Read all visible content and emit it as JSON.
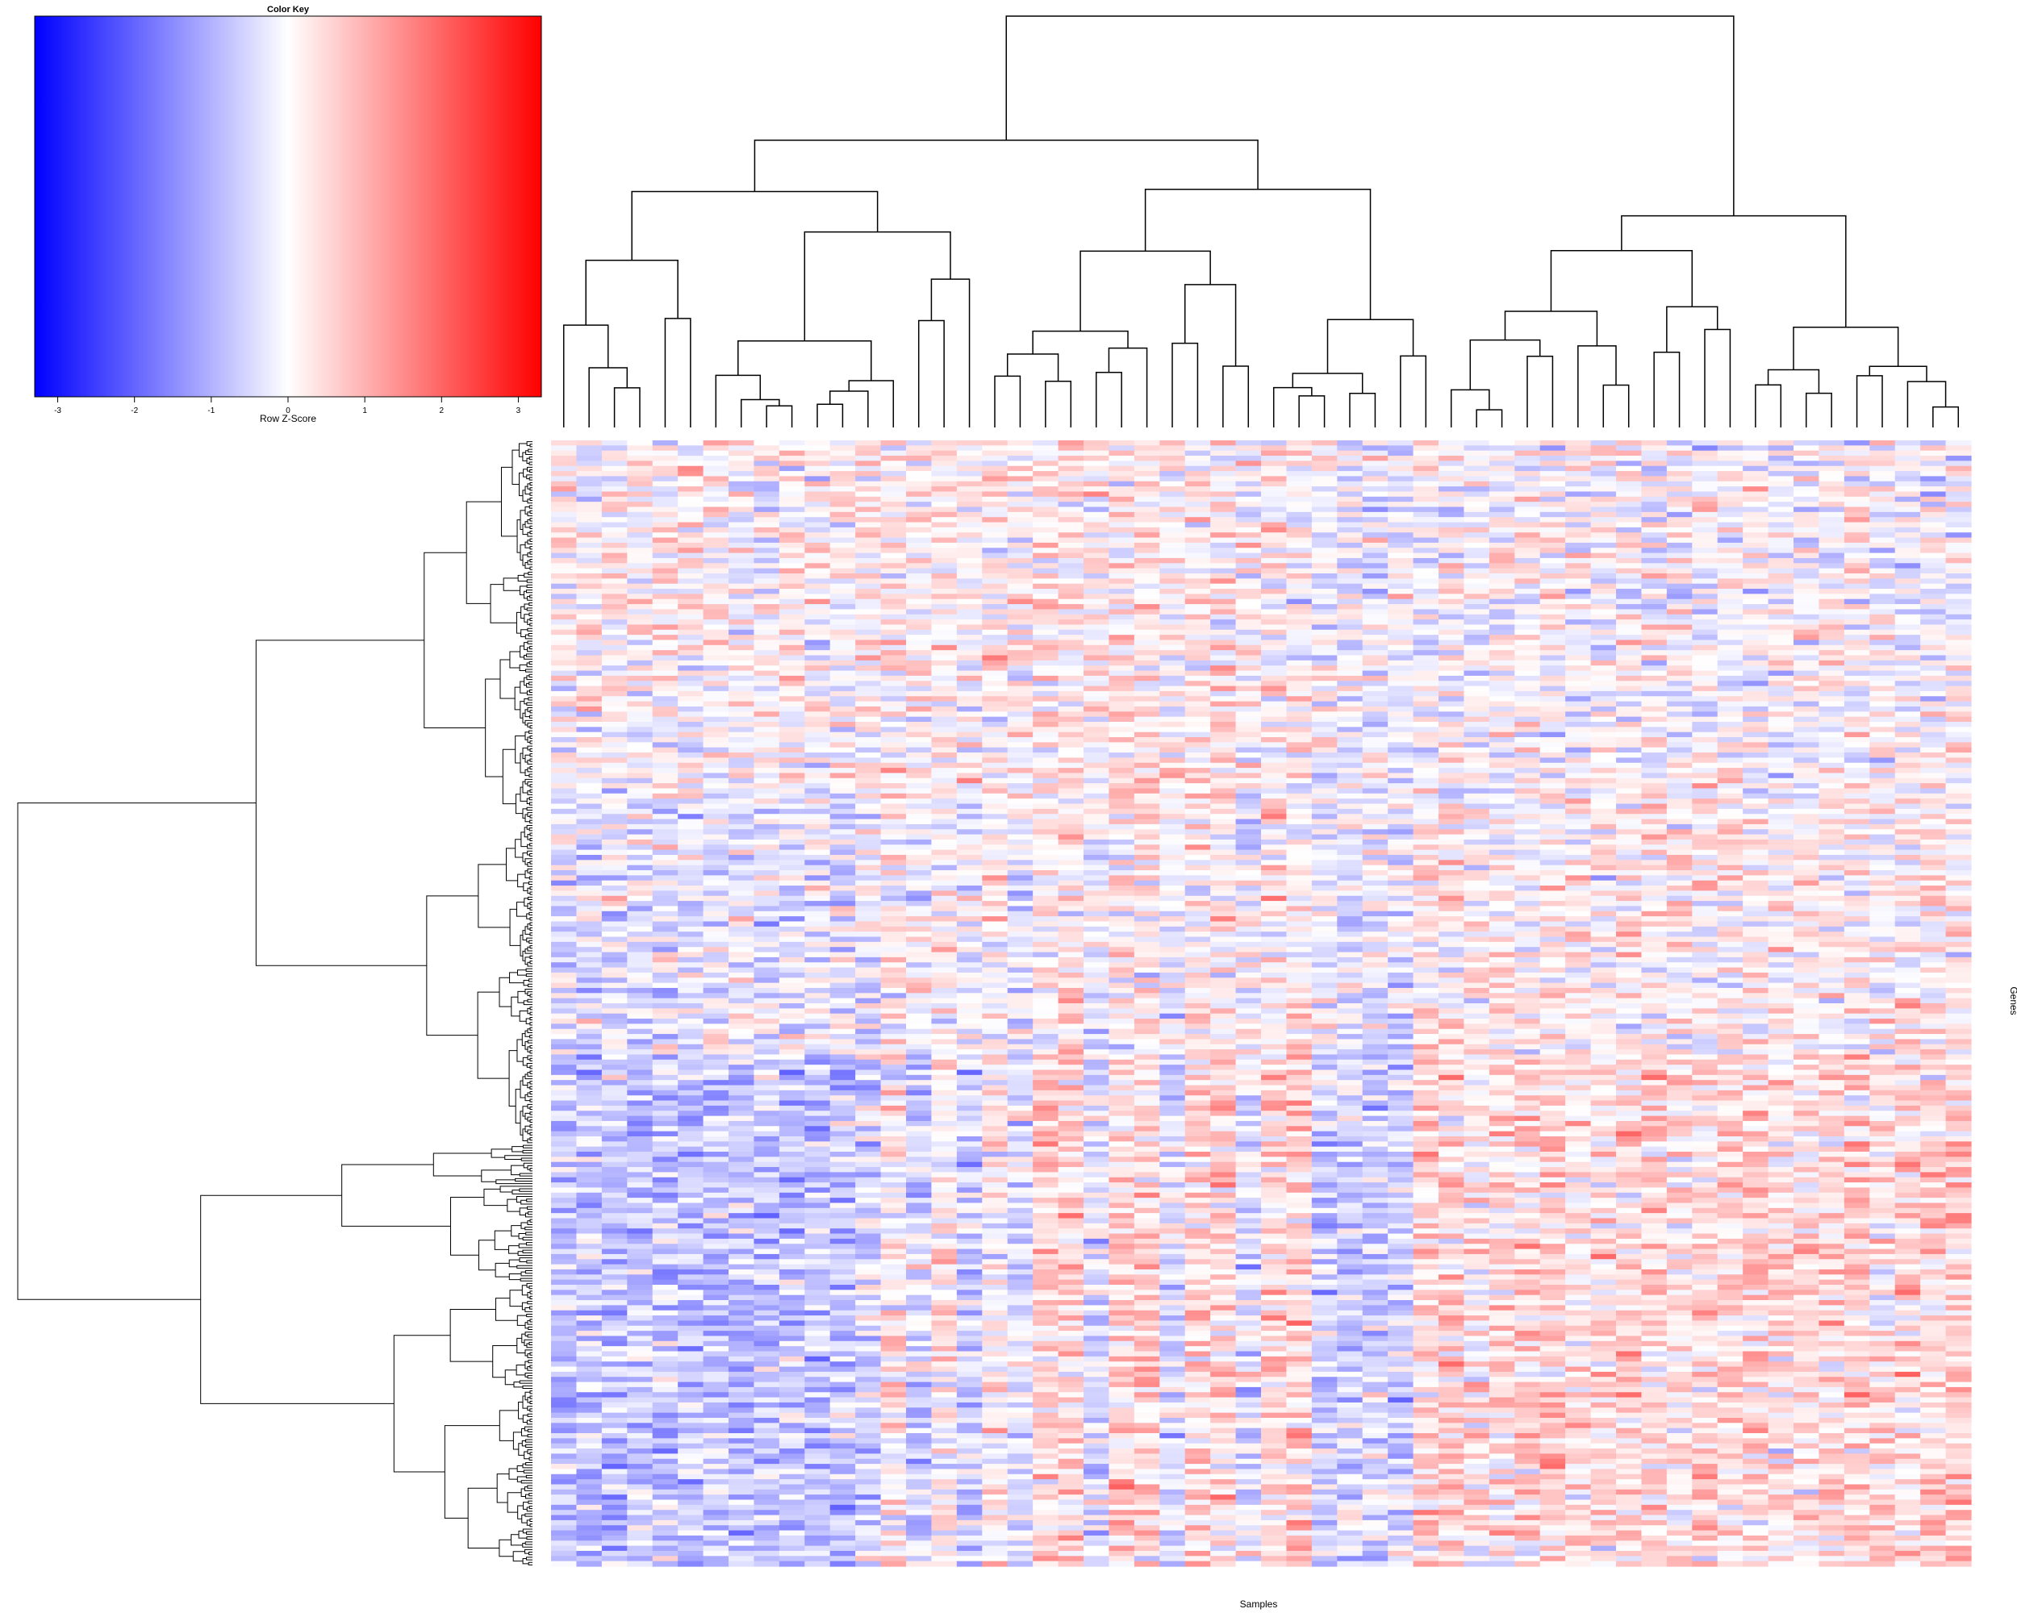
{
  "chart_data": {
    "type": "heatmap",
    "title": "",
    "xlabel": "Samples",
    "ylabel": "Genes",
    "n_columns": 56,
    "n_rows": 220,
    "row_blocks": [
      {
        "rows": "1-70",
        "pattern": "mixed, slight positive (red) bias in left half"
      },
      {
        "rows": "71-120",
        "pattern": "mixed, mostly neutral"
      },
      {
        "rows": "121-130",
        "pattern": "band: left columns low, right columns high"
      },
      {
        "rows": "131-220",
        "pattern": "left columns low (blue), right columns high (red)"
      }
    ],
    "color_key": {
      "title": "Color Key",
      "xlabel": "Row Z-Score",
      "ticks": [
        "-3",
        "-2",
        "-1",
        "0",
        "1",
        "2",
        "3"
      ],
      "range": [
        -3.3,
        3.3
      ],
      "low_color": "#0000ff",
      "mid_color": "#ffffff",
      "high_color": "#ff0000"
    },
    "column_dendrogram": "hierarchical clustering of 56 samples",
    "row_dendrogram": "hierarchical clustering of genes"
  },
  "colors": {
    "low": "#0000ff",
    "mid": "#ffffff",
    "high": "#ff0000",
    "dendrogram": "#000000"
  }
}
